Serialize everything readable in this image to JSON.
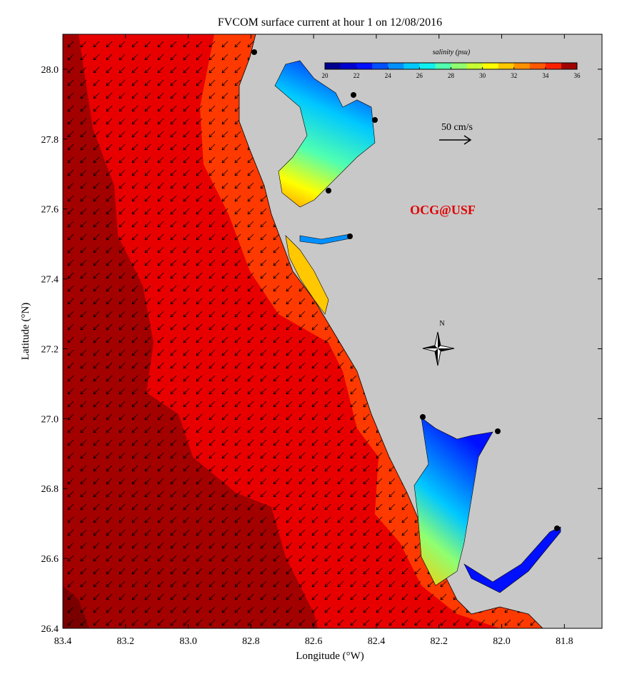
{
  "map": {
    "title": "FVCOM surface current at hour 1 on 12/08/2016",
    "xlabel": "Longitude (°W)",
    "ylabel": "Latitude (°N)",
    "xlim": [
      83.4,
      81.68
    ],
    "ylim": [
      26.4,
      28.1
    ],
    "xticks": [
      83.4,
      83.2,
      {
        "value": 83,
        "label": "83.0"
      },
      82.8,
      82.6,
      82.4,
      82.2,
      {
        "value": 82,
        "label": "82.0"
      },
      81.8
    ],
    "yticks": [
      26.4,
      26.6,
      26.8,
      {
        "value": 27,
        "label": "27.0"
      },
      27.2,
      27.4,
      27.6,
      27.8,
      {
        "value": 28,
        "label": "28.0"
      }
    ],
    "colorbar": {
      "label": "salinity (psu)",
      "lim": [
        20,
        36
      ],
      "ticks": [
        20,
        22,
        24,
        26,
        28,
        30,
        32,
        34,
        36
      ],
      "colors": [
        "#00008f",
        "#0000cf",
        "#0010ff",
        "#0050ff",
        "#0090ff",
        "#00c8ff",
        "#10f0f0",
        "#50ffb0",
        "#90ff70",
        "#c8ff30",
        "#ffff00",
        "#ffc800",
        "#ff9000",
        "#ff5800",
        "#ff2000",
        "#a00000"
      ]
    },
    "scale_label": "50 cm/s",
    "credit": "OCG@USF",
    "north": "N"
  }
}
